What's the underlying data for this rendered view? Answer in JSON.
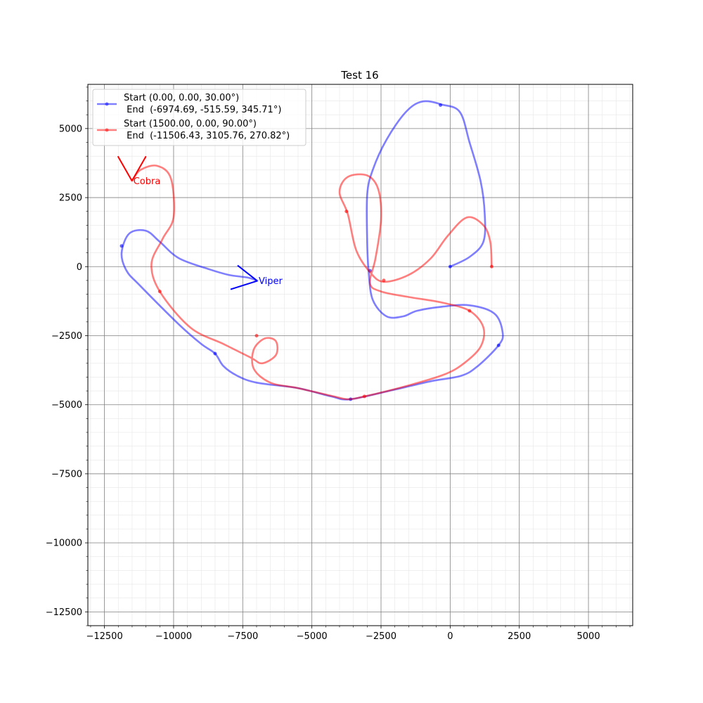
{
  "chart_data": {
    "type": "line",
    "title": "Test 16",
    "xlabel": "",
    "ylabel": "",
    "xlim": [
      -13100,
      6600
    ],
    "ylim": [
      -13000,
      6600
    ],
    "xticks": [
      -12500,
      -10000,
      -7500,
      -5000,
      -2500,
      0,
      2500,
      5000
    ],
    "yticks": [
      5000,
      2500,
      0,
      -2500,
      -5000,
      -7500,
      -10000,
      -12500
    ],
    "xtick_labels": [
      "−12500",
      "−10000",
      "−7500",
      "−5000",
      "−2500",
      "0",
      "2500",
      "5000"
    ],
    "ytick_labels": [
      "5000",
      "2500",
      "0",
      "−2500",
      "−5000",
      "−7500",
      "−10000",
      "−12500"
    ],
    "grid": true,
    "minor_grid": true,
    "legend_position": "top-left",
    "series": [
      {
        "name": "Start (0.00, 0.00, 30.00°)\n End  (-6974.69, -515.59, 345.71°)",
        "legend_line1": "Start (0.00, 0.00, 30.00°)",
        "legend_line2": " End  (-6974.69, -515.59, 345.71°)",
        "color": "#0000ff",
        "alpha": 0.5,
        "points": [
          [
            0,
            0
          ],
          [
            700,
            350
          ],
          [
            1200,
            900
          ],
          [
            1250,
            1900
          ],
          [
            1100,
            3100
          ],
          [
            700,
            4500
          ],
          [
            350,
            5600
          ],
          [
            -300,
            5870
          ],
          [
            -1000,
            5980
          ],
          [
            -1600,
            5600
          ],
          [
            -2300,
            4600
          ],
          [
            -2800,
            3500
          ],
          [
            -3000,
            2600
          ],
          [
            -3000,
            900
          ],
          [
            -2950,
            -150
          ],
          [
            -2800,
            -1200
          ],
          [
            -2300,
            -1800
          ],
          [
            -1700,
            -1800
          ],
          [
            -1200,
            -1600
          ],
          [
            -300,
            -1450
          ],
          [
            700,
            -1400
          ],
          [
            1600,
            -1700
          ],
          [
            1900,
            -2400
          ],
          [
            1750,
            -2850
          ],
          [
            1000,
            -3600
          ],
          [
            400,
            -3950
          ],
          [
            -700,
            -4150
          ],
          [
            -2000,
            -4450
          ],
          [
            -3600,
            -4800
          ],
          [
            -4300,
            -4700
          ],
          [
            -5500,
            -4400
          ],
          [
            -7000,
            -4200
          ],
          [
            -7700,
            -3950
          ],
          [
            -8200,
            -3600
          ],
          [
            -8500,
            -3150
          ],
          [
            -9000,
            -2800
          ],
          [
            -9800,
            -2100
          ],
          [
            -11200,
            -700
          ],
          [
            -11700,
            -150
          ],
          [
            -11880,
            500
          ],
          [
            -11600,
            1200
          ],
          [
            -11000,
            1300
          ],
          [
            -10500,
            900
          ],
          [
            -9800,
            300
          ],
          [
            -8700,
            -100
          ],
          [
            -8000,
            -300
          ],
          [
            -7300,
            -400
          ],
          [
            -6974.69,
            -515.59
          ]
        ],
        "markers": [
          [
            0,
            0
          ],
          [
            -350,
            5850
          ],
          [
            -2900,
            -150
          ],
          [
            1750,
            -2850
          ],
          [
            -3600,
            -4800
          ],
          [
            -8500,
            -3150
          ],
          [
            -11880,
            750
          ]
        ]
      },
      {
        "name": "Start (1500.00, 0.00, 90.00°)\n End  (-11506.43, 3105.76, 270.82°)",
        "legend_line1": "Start (1500.00, 0.00, 90.00°)",
        "legend_line2": " End  (-11506.43, 3105.76, 270.82°)",
        "color": "#ff0000",
        "alpha": 0.5,
        "points": [
          [
            1500,
            0
          ],
          [
            1450,
            900
          ],
          [
            1200,
            1500
          ],
          [
            600,
            1780
          ],
          [
            -100,
            1100
          ],
          [
            -700,
            300
          ],
          [
            -1500,
            -300
          ],
          [
            -2400,
            -550
          ],
          [
            -2900,
            -200
          ],
          [
            -3400,
            600
          ],
          [
            -3700,
            1900
          ],
          [
            -4000,
            2700
          ],
          [
            -3700,
            3250
          ],
          [
            -3000,
            3300
          ],
          [
            -2600,
            2800
          ],
          [
            -2500,
            1700
          ],
          [
            -2700,
            300
          ],
          [
            -2900,
            -600
          ],
          [
            -2500,
            -900
          ],
          [
            -1500,
            -1100
          ],
          [
            -300,
            -1300
          ],
          [
            700,
            -1600
          ],
          [
            1200,
            -2200
          ],
          [
            1100,
            -2900
          ],
          [
            500,
            -3500
          ],
          [
            -200,
            -3900
          ],
          [
            -1500,
            -4300
          ],
          [
            -3100,
            -4700
          ],
          [
            -3700,
            -4800
          ],
          [
            -4200,
            -4700
          ],
          [
            -5500,
            -4400
          ],
          [
            -6500,
            -4200
          ],
          [
            -7100,
            -3700
          ],
          [
            -7100,
            -3000
          ],
          [
            -6700,
            -2600
          ],
          [
            -6300,
            -2700
          ],
          [
            -6300,
            -3200
          ],
          [
            -6800,
            -3500
          ],
          [
            -7200,
            -3300
          ],
          [
            -8200,
            -2800
          ],
          [
            -9400,
            -2200
          ],
          [
            -10500,
            -900
          ],
          [
            -10800,
            100
          ],
          [
            -10400,
            1000
          ],
          [
            -10000,
            1800
          ],
          [
            -10100,
            3200
          ],
          [
            -10600,
            3650
          ],
          [
            -11200,
            3500
          ],
          [
            -11506.43,
            3105.76
          ]
        ],
        "markers": [
          [
            1500,
            0
          ],
          [
            700,
            -1600
          ],
          [
            -2400,
            -500
          ],
          [
            -3750,
            2000
          ],
          [
            -3100,
            -4700
          ],
          [
            -7000,
            -2500
          ],
          [
            -10500,
            -900
          ]
        ]
      }
    ],
    "annotations": [
      {
        "label": "Viper",
        "color": "#0000ff",
        "x": -6974.69,
        "y": -515.59,
        "heading": 345.71
      },
      {
        "label": "Cobra",
        "color": "#ff0000",
        "x": -11506.43,
        "y": 3105.76,
        "heading": 270.82
      }
    ]
  }
}
